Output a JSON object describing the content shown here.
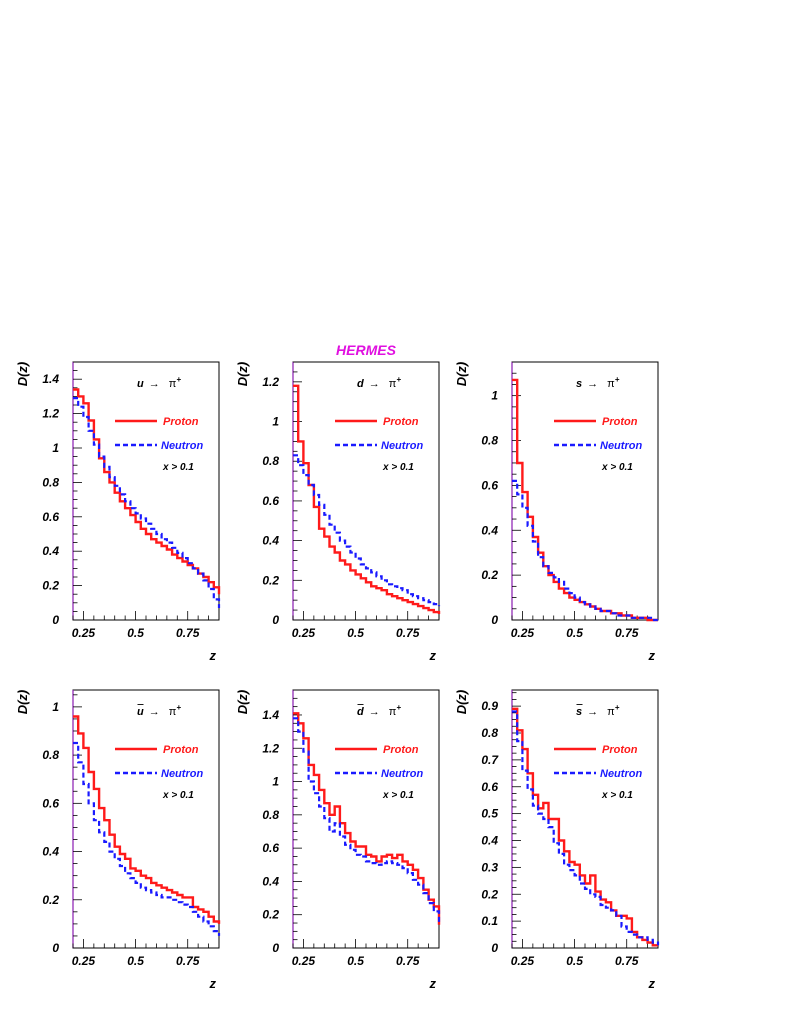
{
  "figure": {
    "title": "HERMES",
    "title_color": "#e010e0",
    "proton_color": "#ff1a1a",
    "neutron_color": "#1a1aff",
    "frame_color": "#000000",
    "left_axis_color": "#8a1ab0"
  },
  "chart_data": [
    {
      "type": "line",
      "title": "u → π+",
      "q": "u",
      "bar": false,
      "arrow": "→",
      "pi": "π",
      "sup": "+",
      "xlabel": "z",
      "ylabel": "D(z)",
      "xlim": [
        0.2,
        0.9
      ],
      "ylim": [
        0,
        1.5
      ],
      "xticks": [
        0.25,
        0.5,
        0.75
      ],
      "xtick_labels": [
        "0.25",
        "0.5",
        "0.75"
      ],
      "yticks": [
        0,
        0.2,
        0.4,
        0.6,
        0.8,
        1,
        1.2,
        1.4
      ],
      "ytick_labels": [
        "0",
        "0.2",
        "0.4",
        "0.6",
        "0.8",
        "1",
        "1.2",
        "1.4"
      ],
      "legend": {
        "proton": "Proton",
        "neutron": "Neutron",
        "cut": "x > 0.1"
      },
      "x": [
        0.2,
        0.225,
        0.25,
        0.275,
        0.3,
        0.325,
        0.35,
        0.375,
        0.4,
        0.425,
        0.45,
        0.475,
        0.5,
        0.525,
        0.55,
        0.575,
        0.6,
        0.625,
        0.65,
        0.675,
        0.7,
        0.725,
        0.75,
        0.775,
        0.8,
        0.825,
        0.85,
        0.875,
        0.9
      ],
      "series": [
        {
          "name": "Proton",
          "values": [
            1.34,
            1.3,
            1.26,
            1.16,
            1.05,
            0.94,
            0.86,
            0.8,
            0.74,
            0.69,
            0.65,
            0.61,
            0.57,
            0.53,
            0.5,
            0.47,
            0.45,
            0.43,
            0.41,
            0.38,
            0.36,
            0.34,
            0.32,
            0.3,
            0.27,
            0.25,
            0.22,
            0.19,
            0.15
          ]
        },
        {
          "name": "Neutron",
          "values": [
            1.29,
            1.24,
            1.18,
            1.1,
            1.02,
            0.95,
            0.89,
            0.83,
            0.78,
            0.73,
            0.69,
            0.65,
            0.62,
            0.59,
            0.56,
            0.53,
            0.5,
            0.47,
            0.45,
            0.42,
            0.39,
            0.36,
            0.33,
            0.3,
            0.27,
            0.23,
            0.18,
            0.12,
            0.07
          ]
        }
      ]
    },
    {
      "type": "line",
      "title": "d → π+",
      "q": "d",
      "bar": false,
      "arrow": "→",
      "pi": "π",
      "sup": "+",
      "xlabel": "z",
      "ylabel": "D(z)",
      "xlim": [
        0.2,
        0.9
      ],
      "ylim": [
        0,
        1.3
      ],
      "xticks": [
        0.25,
        0.5,
        0.75
      ],
      "xtick_labels": [
        "0.25",
        "0.5",
        "0.75"
      ],
      "yticks": [
        0,
        0.2,
        0.4,
        0.6,
        0.8,
        1,
        1.2
      ],
      "ytick_labels": [
        "0",
        "0.2",
        "0.4",
        "0.6",
        "0.8",
        "1",
        "1.2"
      ],
      "legend": {
        "proton": "Proton",
        "neutron": "Neutron",
        "cut": "x > 0.1"
      },
      "x": [
        0.2,
        0.225,
        0.25,
        0.275,
        0.3,
        0.325,
        0.35,
        0.375,
        0.4,
        0.425,
        0.45,
        0.475,
        0.5,
        0.525,
        0.55,
        0.575,
        0.6,
        0.625,
        0.65,
        0.675,
        0.7,
        0.725,
        0.75,
        0.775,
        0.8,
        0.825,
        0.85,
        0.875,
        0.9
      ],
      "series": [
        {
          "name": "Proton",
          "values": [
            1.18,
            0.9,
            0.79,
            0.68,
            0.57,
            0.46,
            0.42,
            0.37,
            0.34,
            0.3,
            0.28,
            0.25,
            0.23,
            0.21,
            0.19,
            0.17,
            0.16,
            0.15,
            0.13,
            0.12,
            0.11,
            0.1,
            0.09,
            0.08,
            0.07,
            0.06,
            0.05,
            0.04,
            0.03
          ]
        },
        {
          "name": "Neutron",
          "values": [
            0.83,
            0.78,
            0.73,
            0.68,
            0.63,
            0.58,
            0.53,
            0.48,
            0.44,
            0.4,
            0.37,
            0.34,
            0.31,
            0.28,
            0.26,
            0.24,
            0.22,
            0.2,
            0.18,
            0.17,
            0.16,
            0.15,
            0.13,
            0.12,
            0.11,
            0.1,
            0.09,
            0.08,
            0.07
          ]
        }
      ]
    },
    {
      "type": "line",
      "title": "s → π+",
      "q": "s",
      "bar": false,
      "arrow": "→",
      "pi": "π",
      "sup": "+",
      "xlabel": "z",
      "ylabel": "D(z)",
      "xlim": [
        0.2,
        0.9
      ],
      "ylim": [
        0,
        1.15
      ],
      "xticks": [
        0.25,
        0.5,
        0.75
      ],
      "xtick_labels": [
        "0.25",
        "0.5",
        "0.75"
      ],
      "yticks": [
        0,
        0.2,
        0.4,
        0.6,
        0.8,
        1
      ],
      "ytick_labels": [
        "0",
        "0.2",
        "0.4",
        "0.6",
        "0.8",
        "1"
      ],
      "legend": {
        "proton": "Proton",
        "neutron": "Neutron",
        "cut": "x > 0.1"
      },
      "x": [
        0.2,
        0.225,
        0.25,
        0.275,
        0.3,
        0.325,
        0.35,
        0.375,
        0.4,
        0.425,
        0.45,
        0.475,
        0.5,
        0.525,
        0.55,
        0.575,
        0.6,
        0.625,
        0.65,
        0.675,
        0.7,
        0.725,
        0.75,
        0.775,
        0.8,
        0.825,
        0.85,
        0.875,
        0.9
      ],
      "series": [
        {
          "name": "Proton",
          "values": [
            1.07,
            0.7,
            0.57,
            0.46,
            0.37,
            0.3,
            0.24,
            0.2,
            0.17,
            0.14,
            0.12,
            0.1,
            0.09,
            0.08,
            0.07,
            0.06,
            0.05,
            0.04,
            0.04,
            0.03,
            0.03,
            0.02,
            0.02,
            0.01,
            0.01,
            0.01,
            0,
            0,
            0
          ]
        },
        {
          "name": "Neutron",
          "values": [
            0.62,
            0.56,
            0.5,
            0.42,
            0.35,
            0.28,
            0.24,
            0.21,
            0.19,
            0.17,
            0.14,
            0.12,
            0.1,
            0.08,
            0.07,
            0.06,
            0.05,
            0.04,
            0.04,
            0.03,
            0.02,
            0.02,
            0.02,
            0.01,
            0.01,
            0.01,
            0.01,
            0,
            0
          ]
        }
      ]
    },
    {
      "type": "line",
      "title": "ū → π+",
      "q": "u",
      "bar": true,
      "arrow": "→",
      "pi": "π",
      "sup": "+",
      "xlabel": "z",
      "ylabel": "D(z)",
      "xlim": [
        0.2,
        0.9
      ],
      "ylim": [
        0,
        1.07
      ],
      "xticks": [
        0.25,
        0.5,
        0.75
      ],
      "xtick_labels": [
        "0.25",
        "0.5",
        "0.75"
      ],
      "yticks": [
        0,
        0.2,
        0.4,
        0.6,
        0.8,
        1
      ],
      "ytick_labels": [
        "0",
        "0.2",
        "0.4",
        "0.6",
        "0.8",
        "1"
      ],
      "legend": {
        "proton": "Proton",
        "neutron": "Neutron",
        "cut": "x > 0.1"
      },
      "x": [
        0.2,
        0.225,
        0.25,
        0.275,
        0.3,
        0.325,
        0.35,
        0.375,
        0.4,
        0.425,
        0.45,
        0.475,
        0.5,
        0.525,
        0.55,
        0.575,
        0.6,
        0.625,
        0.65,
        0.675,
        0.7,
        0.725,
        0.75,
        0.775,
        0.8,
        0.825,
        0.85,
        0.875,
        0.9
      ],
      "series": [
        {
          "name": "Proton",
          "values": [
            0.96,
            0.89,
            0.83,
            0.73,
            0.66,
            0.58,
            0.53,
            0.47,
            0.42,
            0.39,
            0.37,
            0.33,
            0.32,
            0.3,
            0.29,
            0.27,
            0.26,
            0.25,
            0.24,
            0.23,
            0.22,
            0.21,
            0.21,
            0.17,
            0.16,
            0.15,
            0.13,
            0.11,
            0.1
          ]
        },
        {
          "name": "Neutron",
          "values": [
            0.85,
            0.77,
            0.68,
            0.6,
            0.53,
            0.48,
            0.44,
            0.4,
            0.37,
            0.34,
            0.31,
            0.29,
            0.27,
            0.25,
            0.24,
            0.23,
            0.22,
            0.21,
            0.21,
            0.2,
            0.19,
            0.18,
            0.17,
            0.15,
            0.13,
            0.11,
            0.09,
            0.07,
            0.05
          ]
        }
      ]
    },
    {
      "type": "line",
      "title": "d̄ → π+",
      "q": "d",
      "bar": true,
      "arrow": "→",
      "pi": "π",
      "sup": "+",
      "xlabel": "z",
      "ylabel": "D(z)",
      "xlim": [
        0.2,
        0.9
      ],
      "ylim": [
        0,
        1.55
      ],
      "xticks": [
        0.25,
        0.5,
        0.75
      ],
      "xtick_labels": [
        "0.25",
        "0.5",
        "0.75"
      ],
      "yticks": [
        0,
        0.2,
        0.4,
        0.6,
        0.8,
        1,
        1.2,
        1.4
      ],
      "ytick_labels": [
        "0",
        "0.2",
        "0.4",
        "0.6",
        "0.8",
        "1",
        "1.2",
        "1.4"
      ],
      "legend": {
        "proton": "Proton",
        "neutron": "Neutron",
        "cut": "x > 0.1"
      },
      "x": [
        0.2,
        0.225,
        0.25,
        0.275,
        0.3,
        0.325,
        0.35,
        0.375,
        0.4,
        0.425,
        0.45,
        0.475,
        0.5,
        0.525,
        0.55,
        0.575,
        0.6,
        0.625,
        0.65,
        0.675,
        0.7,
        0.725,
        0.75,
        0.775,
        0.8,
        0.825,
        0.85,
        0.875,
        0.9
      ],
      "series": [
        {
          "name": "Proton",
          "values": [
            1.41,
            1.35,
            1.26,
            1.1,
            1.04,
            0.95,
            0.87,
            0.8,
            0.85,
            0.75,
            0.69,
            0.64,
            0.61,
            0.61,
            0.56,
            0.55,
            0.52,
            0.55,
            0.56,
            0.54,
            0.56,
            0.52,
            0.5,
            0.47,
            0.42,
            0.35,
            0.29,
            0.25,
            0.14
          ]
        },
        {
          "name": "Neutron",
          "values": [
            1.38,
            1.3,
            1.18,
            1.0,
            0.93,
            0.85,
            0.78,
            0.7,
            0.75,
            0.67,
            0.62,
            0.59,
            0.56,
            0.55,
            0.52,
            0.51,
            0.5,
            0.51,
            0.52,
            0.51,
            0.5,
            0.48,
            0.45,
            0.41,
            0.38,
            0.33,
            0.27,
            0.22,
            0.15
          ]
        }
      ]
    },
    {
      "type": "line",
      "title": "s̄ → π+",
      "q": "s",
      "bar": true,
      "arrow": "→",
      "pi": "π",
      "sup": "+",
      "xlabel": "z",
      "ylabel": "D(z)",
      "xlim": [
        0.2,
        0.9
      ],
      "ylim": [
        0,
        0.96
      ],
      "xticks": [
        0.25,
        0.5,
        0.75
      ],
      "xtick_labels": [
        "0.25",
        "0.5",
        "0.75"
      ],
      "yticks": [
        0,
        0.1,
        0.2,
        0.3,
        0.4,
        0.5,
        0.6,
        0.7,
        0.8,
        0.9
      ],
      "ytick_labels": [
        "0",
        "0.1",
        "0.2",
        "0.3",
        "0.4",
        "0.5",
        "0.6",
        "0.7",
        "0.8",
        "0.9"
      ],
      "legend": {
        "proton": "Proton",
        "neutron": "Neutron",
        "cut": "x > 0.1"
      },
      "x": [
        0.2,
        0.225,
        0.25,
        0.275,
        0.3,
        0.325,
        0.35,
        0.375,
        0.4,
        0.425,
        0.45,
        0.475,
        0.5,
        0.525,
        0.55,
        0.575,
        0.6,
        0.625,
        0.65,
        0.675,
        0.7,
        0.725,
        0.75,
        0.775,
        0.8,
        0.825,
        0.85,
        0.875,
        0.9
      ],
      "series": [
        {
          "name": "Proton",
          "values": [
            0.89,
            0.81,
            0.74,
            0.65,
            0.57,
            0.52,
            0.54,
            0.48,
            0.48,
            0.4,
            0.36,
            0.32,
            0.31,
            0.27,
            0.24,
            0.27,
            0.21,
            0.18,
            0.17,
            0.14,
            0.12,
            0.12,
            0.11,
            0.06,
            0.04,
            0.03,
            0.02,
            0.01,
            0.01
          ]
        },
        {
          "name": "Neutron",
          "values": [
            0.88,
            0.77,
            0.66,
            0.59,
            0.53,
            0.5,
            0.48,
            0.45,
            0.39,
            0.35,
            0.31,
            0.29,
            0.27,
            0.24,
            0.22,
            0.2,
            0.19,
            0.16,
            0.15,
            0.14,
            0.12,
            0.08,
            0.06,
            0.05,
            0.04,
            0.04,
            0.03,
            0.02,
            0.01
          ]
        }
      ]
    }
  ]
}
